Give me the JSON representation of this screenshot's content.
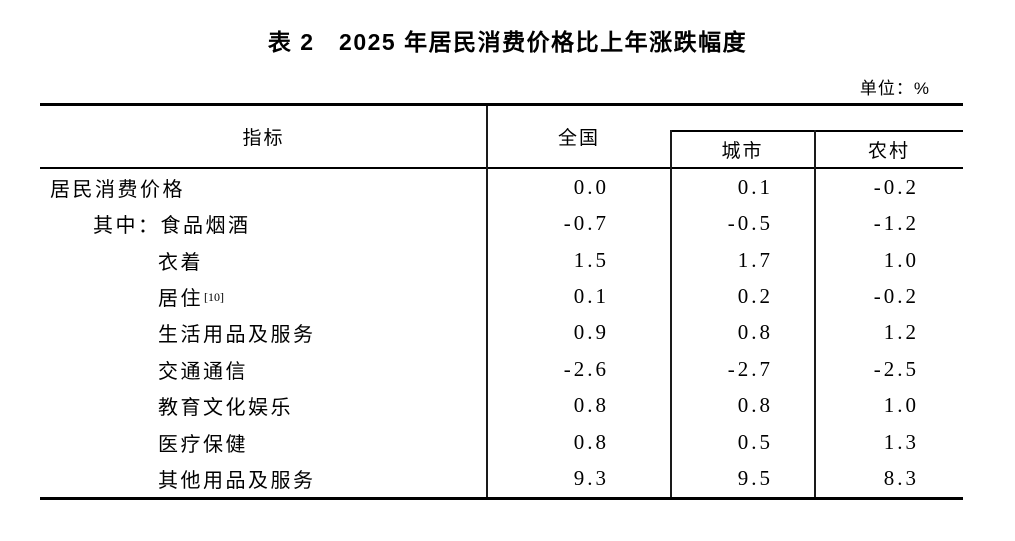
{
  "title": "表 2　2025 年居民消费价格比上年涨跌幅度",
  "unit_label": "单位：%",
  "table": {
    "indicator_header": "指标",
    "columns": [
      "全国",
      "城市",
      "农村"
    ],
    "rows": [
      {
        "label": "居民消费价格",
        "indent": 0,
        "values": [
          "0.0",
          "0.1",
          "-0.2"
        ]
      },
      {
        "label": "其中：食品烟酒",
        "indent": 1,
        "values": [
          "-0.7",
          "-0.5",
          "-1.2"
        ]
      },
      {
        "label": "衣着",
        "indent": 2,
        "values": [
          "1.5",
          "1.7",
          "1.0"
        ]
      },
      {
        "label": "居住",
        "indent": 2,
        "footnote": "[10]",
        "values": [
          "0.1",
          "0.2",
          "-0.2"
        ]
      },
      {
        "label": "生活用品及服务",
        "indent": 2,
        "values": [
          "0.9",
          "0.8",
          "1.2"
        ]
      },
      {
        "label": "交通通信",
        "indent": 2,
        "values": [
          "-2.6",
          "-2.7",
          "-2.5"
        ]
      },
      {
        "label": "教育文化娱乐",
        "indent": 2,
        "values": [
          "0.8",
          "0.8",
          "1.0"
        ]
      },
      {
        "label": "医疗保健",
        "indent": 2,
        "values": [
          "0.8",
          "0.5",
          "1.3"
        ]
      },
      {
        "label": "其他用品及服务",
        "indent": 2,
        "values": [
          "9.3",
          "9.5",
          "8.3"
        ]
      }
    ]
  },
  "chart_data": {
    "type": "table",
    "title": "表 2　2025 年居民消费价格比上年涨跌幅度",
    "unit": "%",
    "categories": [
      "居民消费价格",
      "其中：食品烟酒",
      "衣着",
      "居住",
      "生活用品及服务",
      "交通通信",
      "教育文化娱乐",
      "医疗保健",
      "其他用品及服务"
    ],
    "series": [
      {
        "name": "全国",
        "values": [
          0.0,
          -0.7,
          1.5,
          0.1,
          0.9,
          -2.6,
          0.8,
          0.8,
          9.3
        ]
      },
      {
        "name": "城市",
        "values": [
          0.1,
          -0.5,
          1.7,
          0.2,
          0.8,
          -2.7,
          0.8,
          0.5,
          9.5
        ]
      },
      {
        "name": "农村",
        "values": [
          -0.2,
          -1.2,
          1.0,
          -0.2,
          1.2,
          -2.5,
          1.0,
          1.3,
          8.3
        ]
      }
    ]
  }
}
